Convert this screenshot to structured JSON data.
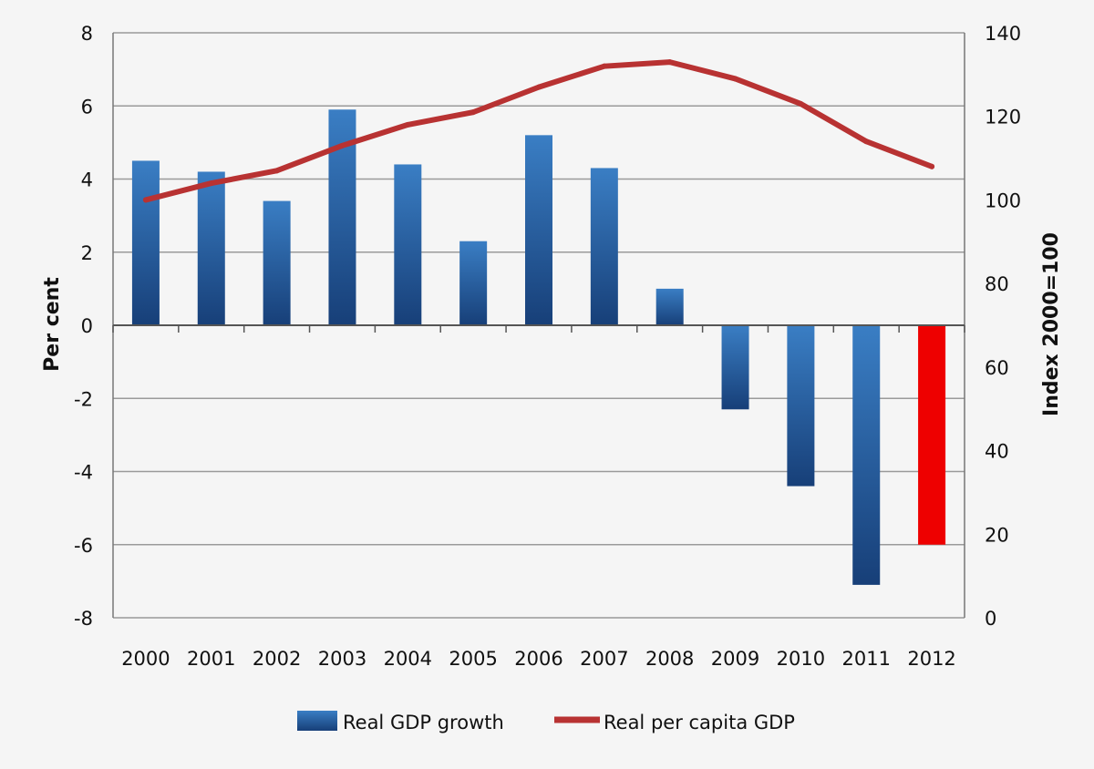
{
  "colors": {
    "background": "#f5f5f5",
    "bar_blue_light": "#3a7ec4",
    "bar_blue_dark": "#173f78",
    "bar_highlight": "#ee0000",
    "line": "#b83232",
    "grid": "#9a9a9a"
  },
  "chart_data": {
    "type": "bar",
    "categories": [
      "2000",
      "2001",
      "2002",
      "2003",
      "2004",
      "2005",
      "2006",
      "2007",
      "2008",
      "2009",
      "2010",
      "2011",
      "2012"
    ],
    "series": [
      {
        "name": "Real GDP growth",
        "type": "bar",
        "axis": "left",
        "values": [
          4.5,
          4.2,
          3.4,
          5.9,
          4.4,
          2.3,
          5.2,
          4.3,
          1.0,
          -2.3,
          -4.4,
          -7.1,
          -6.0
        ],
        "highlight_index": 12,
        "highlight_color": "#ee0000"
      },
      {
        "name": "Real per capita GDP",
        "type": "line",
        "axis": "right",
        "values": [
          100,
          104,
          107,
          113,
          118,
          121,
          127,
          132,
          133,
          129,
          123,
          114,
          108
        ]
      }
    ],
    "ylabel": "Per cent",
    "y2label": "Index 2000=100",
    "ylim": [
      -8,
      8
    ],
    "y2lim": [
      0,
      140
    ],
    "yticks": [
      "8",
      "6",
      "4",
      "2",
      "0",
      "-2",
      "-4",
      "-6",
      "-8"
    ],
    "y2ticks": [
      "140",
      "120",
      "100",
      "80",
      "60",
      "40",
      "20",
      "0"
    ],
    "grid": true,
    "legend_position": "bottom"
  }
}
